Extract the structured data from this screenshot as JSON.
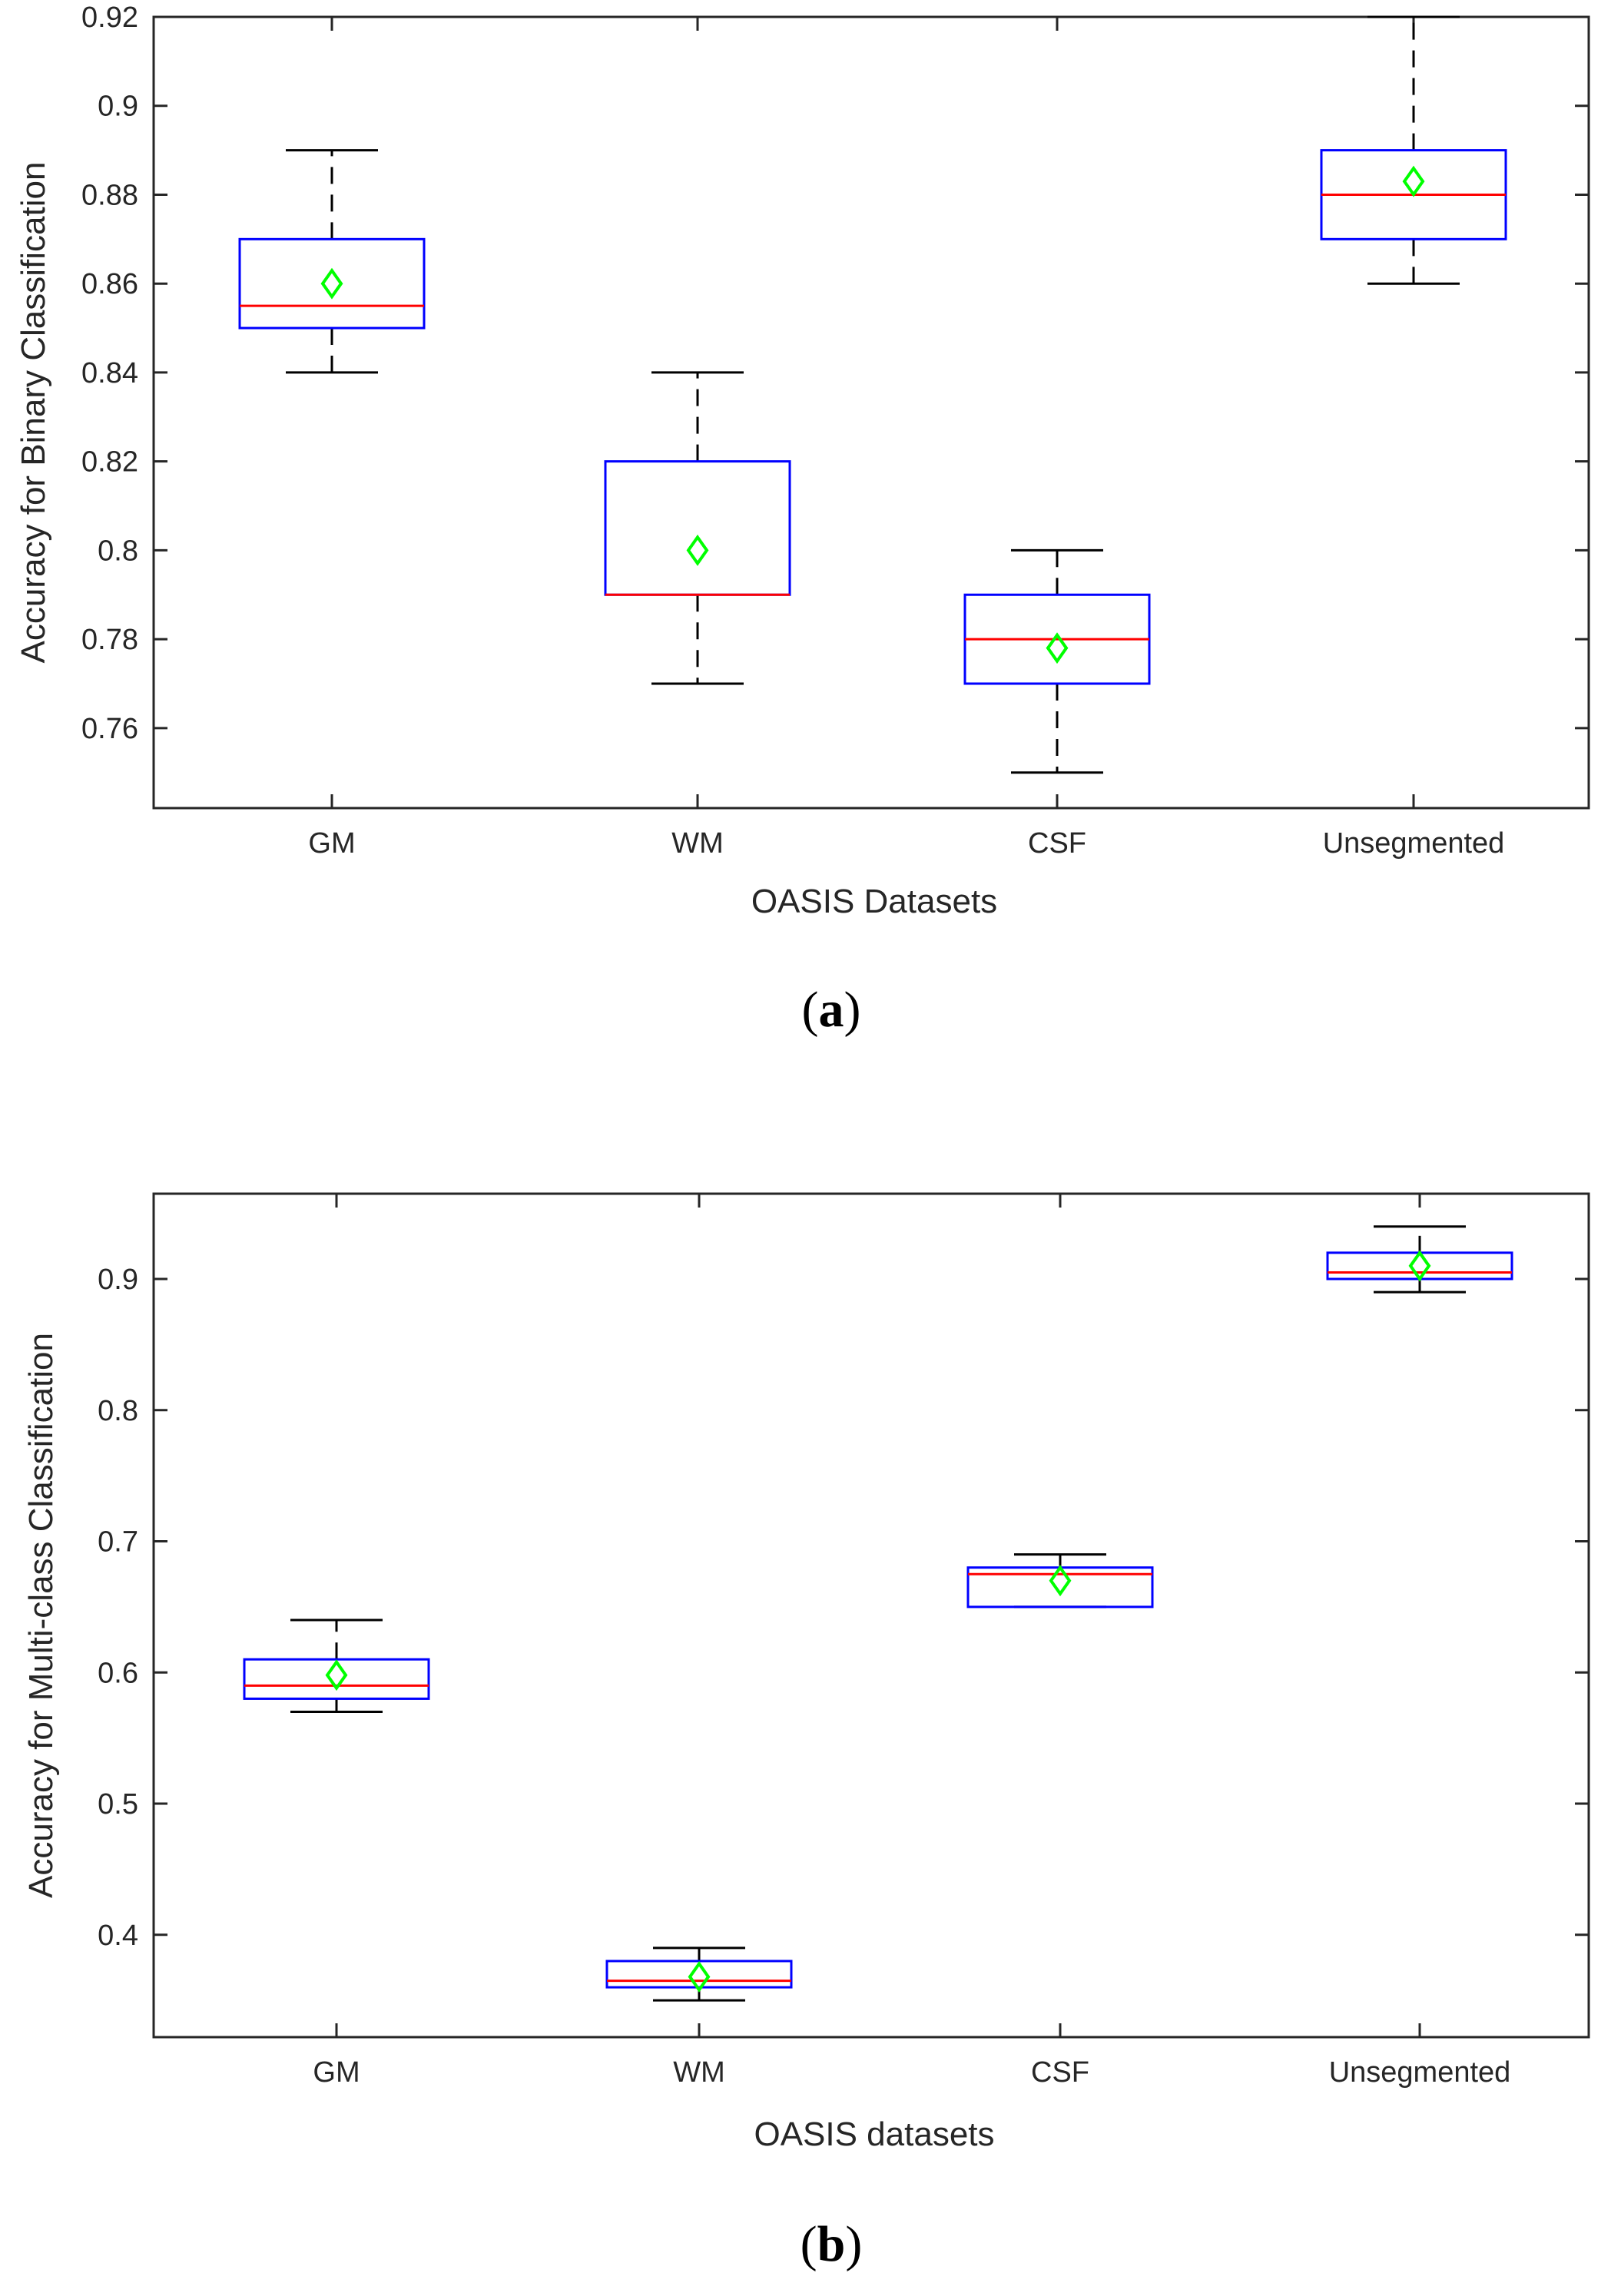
{
  "colors": {
    "box_edge": "#0000ff",
    "median": "#ff0000",
    "mean_marker": "#00ff00",
    "whisker": "#000000",
    "axis": "#262626"
  },
  "chart_data": [
    {
      "type": "box",
      "panel_label": "a",
      "xlabel": "OASIS Datasets",
      "ylabel": "Accuracy for Binary Classification",
      "ylim": [
        0.742,
        0.92
      ],
      "yticks": [
        0.76,
        0.78,
        0.8,
        0.82,
        0.84,
        0.86,
        0.88,
        0.9,
        0.92
      ],
      "ytick_labels": [
        "0.76",
        "0.78",
        "0.8",
        "0.82",
        "0.84",
        "0.86",
        "0.88",
        "0.9",
        "0.92"
      ],
      "categories": [
        "GM",
        "WM",
        "CSF",
        "Unsegmented"
      ],
      "boxes": [
        {
          "category": "GM",
          "whisker_low": 0.84,
          "q1": 0.85,
          "median": 0.855,
          "q3": 0.87,
          "whisker_high": 0.89,
          "mean": 0.86
        },
        {
          "category": "WM",
          "whisker_low": 0.77,
          "q1": 0.79,
          "median": 0.79,
          "q3": 0.82,
          "whisker_high": 0.84,
          "mean": 0.8
        },
        {
          "category": "CSF",
          "whisker_low": 0.75,
          "q1": 0.77,
          "median": 0.78,
          "q3": 0.79,
          "whisker_high": 0.8,
          "mean": 0.778
        },
        {
          "category": "Unsegmented",
          "whisker_low": 0.86,
          "q1": 0.87,
          "median": 0.88,
          "q3": 0.89,
          "whisker_high": 0.92,
          "mean": 0.883
        }
      ]
    },
    {
      "type": "box",
      "panel_label": "b",
      "xlabel": "OASIS datasets",
      "ylabel": "Accuracy for Multi-class Classification",
      "ylim": [
        0.322,
        0.965
      ],
      "yticks": [
        0.4,
        0.5,
        0.6,
        0.7,
        0.8,
        0.9
      ],
      "ytick_labels": [
        "0.4",
        "0.5",
        "0.6",
        "0.7",
        "0.8",
        "0.9"
      ],
      "categories": [
        "GM",
        "WM",
        "CSF",
        "Unsegmented"
      ],
      "boxes": [
        {
          "category": "GM",
          "whisker_low": 0.57,
          "q1": 0.58,
          "median": 0.59,
          "q3": 0.61,
          "whisker_high": 0.64,
          "mean": 0.598
        },
        {
          "category": "WM",
          "whisker_low": 0.35,
          "q1": 0.36,
          "median": 0.365,
          "q3": 0.38,
          "whisker_high": 0.39,
          "mean": 0.368
        },
        {
          "category": "CSF",
          "whisker_low": 0.65,
          "q1": 0.65,
          "median": 0.675,
          "q3": 0.68,
          "whisker_high": 0.69,
          "mean": 0.67
        },
        {
          "category": "Unsegmented",
          "whisker_low": 0.89,
          "q1": 0.9,
          "median": 0.905,
          "q3": 0.92,
          "whisker_high": 0.94,
          "mean": 0.91
        }
      ]
    }
  ]
}
